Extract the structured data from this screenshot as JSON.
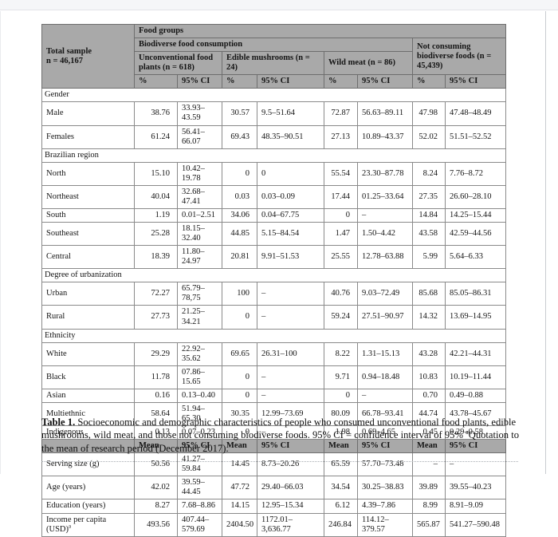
{
  "table": {
    "header": {
      "total_sample": "Total sample\nn = 46,167",
      "food_groups": "Food groups",
      "biodiverse": "Biodiverse food consumption",
      "not_consuming": "Not consuming biodiverse foods (n = 45,439)",
      "groups": [
        "Unconventional food plants (n = 618)",
        "Edible mushrooms (n = 24)",
        "Wild meat (n = 86)"
      ],
      "pct_label": "%",
      "ci_label": "95% CI"
    },
    "rows": [
      {
        "type": "section",
        "label": "Gender"
      },
      {
        "type": "data",
        "label": "Male",
        "values": [
          "38.76",
          "33.93–43.59",
          "30.57",
          "9.5–51.64",
          "72.87",
          "56.63–89.11",
          "47.98",
          "47.48–48.49"
        ]
      },
      {
        "type": "data",
        "label": "Females",
        "values": [
          "61.24",
          "56.41–66.07",
          "69.43",
          "48.35–90.51",
          "27.13",
          "10.89–43.37",
          "52.02",
          "51.51–52.52"
        ]
      },
      {
        "type": "section",
        "label": "Brazilian region"
      },
      {
        "type": "data",
        "label": "North",
        "values": [
          "15.10",
          "10.42–19.78",
          "0",
          "0",
          "55.54",
          "23.30–87.78",
          "8.24",
          "7.76–8.72"
        ]
      },
      {
        "type": "data",
        "label": "Northeast",
        "values": [
          "40.04",
          "32.68–47.41",
          "0.03",
          "0.03–0.09",
          "17.44",
          "01.25–33.64",
          "27.35",
          "26.60–28.10"
        ]
      },
      {
        "type": "data",
        "label": "South",
        "values": [
          "1.19",
          "0.01–2.51",
          "34.06",
          "0.04–67.75",
          "0",
          "–",
          "14.84",
          "14.25–15.44"
        ]
      },
      {
        "type": "data",
        "label": "Southeast",
        "values": [
          "25.28",
          "18.15–32.40",
          "44.85",
          "5.15–84.54",
          "1.47",
          "1.50–4.42",
          "43.58",
          "42.59–44.56"
        ]
      },
      {
        "type": "data",
        "label": "Central",
        "values": [
          "18.39",
          "11.80–24.97",
          "20.81",
          "9.91–51.53",
          "25.55",
          "12.78–63.88",
          "5.99",
          "5.64–6.33"
        ]
      },
      {
        "type": "section",
        "label": "Degree of urbanization"
      },
      {
        "type": "data",
        "label": "Urban",
        "values": [
          "72.27",
          "65.79–78,75",
          "100",
          "–",
          "40.76",
          "9.03–72.49",
          "85.68",
          "85.05–86.31"
        ]
      },
      {
        "type": "data",
        "label": "Rural",
        "values": [
          "27.73",
          "21.25–34.21",
          "0",
          "–",
          "59.24",
          "27.51–90.97",
          "14.32",
          "13.69–14.95"
        ]
      },
      {
        "type": "section",
        "label": "Ethnicity"
      },
      {
        "type": "data",
        "label": "White",
        "values": [
          "29.29",
          "22.92–35.62",
          "69.65",
          "26.31–100",
          "8.22",
          "1.31–15.13",
          "43.28",
          "42.21–44.31"
        ]
      },
      {
        "type": "data",
        "label": "Black",
        "values": [
          "11.78",
          "07.86–15.65",
          "0",
          "–",
          "9.71",
          "0.94–18.48",
          "10.83",
          "10.19–11.44"
        ]
      },
      {
        "type": "data",
        "label": "Asian",
        "values": [
          "0.16",
          "0.13–0.40",
          "0",
          "–",
          "0",
          "–",
          "0.70",
          "0.49–0.88"
        ]
      },
      {
        "type": "data",
        "label": "Multiethnic",
        "values": [
          "58.64",
          "51.94–65.30",
          "30.35",
          "12.99–73.69",
          "80.09",
          "66.78–93.41",
          "44.74",
          "43.78–45.67"
        ]
      },
      {
        "type": "data",
        "label": "Indigenous",
        "values": [
          "0.13",
          "0.07–0.23",
          "0",
          "–",
          "1.98",
          "0.69–4.65",
          "0.45",
          "0.29–0.58"
        ]
      },
      {
        "type": "subheader",
        "cells": [
          "",
          "Mean",
          "95% CI",
          "Mean",
          "95% CI",
          "Mean",
          "95% CI",
          "Mean",
          "95% CI"
        ]
      },
      {
        "type": "data",
        "label": "Serving size (g)",
        "values": [
          "50.56",
          "41.27–59.84",
          "14.45",
          "8.73–20.26",
          "65.59",
          "57.70–73.48",
          "–",
          "–"
        ]
      },
      {
        "type": "data",
        "label": "Age (years)",
        "values": [
          "42.02",
          "39.59–44.45",
          "47.72",
          "29.40–66.03",
          "34.54",
          "30.25–38.83",
          "39.89",
          "39.55–40.23"
        ]
      },
      {
        "type": "data",
        "label": "Education (years)",
        "values": [
          "8.27",
          "7.68–8.86",
          "14.15",
          "12.95–15.34",
          "6.12",
          "4.39–7.86",
          "8.99",
          "8.91–9.09"
        ]
      },
      {
        "type": "data",
        "label": "Income per capita (USD)",
        "sup": "a",
        "values": [
          "493.56",
          "407.44–579.69",
          "2404.50",
          "1172.01–3,636.77",
          "246.84",
          "114.12–379.57",
          "565.87",
          "541.27–590.48"
        ]
      }
    ]
  },
  "caption": {
    "label": "Table 1.",
    "text1": "  Socioeconomic and demographic characteristics of people who consumed unconventional food plants, edible mushrooms, wild meat, and those not consuming biodiverse foods. 95% CI = confidence interval of 95% ",
    "sup": "a",
    "text2": "Quotation to the mean of research period (December 2017)."
  }
}
